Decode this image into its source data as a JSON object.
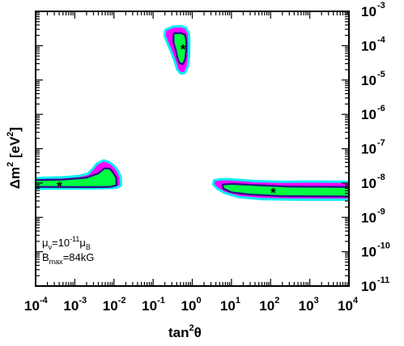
{
  "chart_data": {
    "type": "contour",
    "xlabel": {
      "base": "tan",
      "sup": "2",
      "tail": "θ"
    },
    "ylabel": {
      "base": "Δm",
      "sup": "2",
      "tail": " [eV",
      "sup2": "2",
      "end": "]"
    },
    "x_scale": "log",
    "y_scale": "log",
    "xlim": [
      0.0001,
      10000
    ],
    "ylim": [
      1e-11,
      0.001
    ],
    "x_ticks": [
      {
        "base": "10",
        "exp": "-4",
        "value": 0.0001
      },
      {
        "base": "10",
        "exp": "-3",
        "value": 0.001
      },
      {
        "base": "10",
        "exp": "-2",
        "value": 0.01
      },
      {
        "base": "10",
        "exp": "-1",
        "value": 0.1
      },
      {
        "base": "10",
        "exp": "0",
        "value": 1
      },
      {
        "base": "10",
        "exp": "1",
        "value": 10
      },
      {
        "base": "10",
        "exp": "2",
        "value": 100
      },
      {
        "base": "10",
        "exp": "3",
        "value": 1000
      },
      {
        "base": "10",
        "exp": "4",
        "value": 10000
      }
    ],
    "y_ticks": [
      {
        "base": "10",
        "exp": "-11",
        "value": 1e-11
      },
      {
        "base": "10",
        "exp": "-10",
        "value": 1e-10
      },
      {
        "base": "10",
        "exp": "-9",
        "value": 1e-09
      },
      {
        "base": "10",
        "exp": "-8",
        "value": 1e-08
      },
      {
        "base": "10",
        "exp": "-7",
        "value": 1e-07
      },
      {
        "base": "10",
        "exp": "-6",
        "value": 1e-06
      },
      {
        "base": "10",
        "exp": "-5",
        "value": 1e-05
      },
      {
        "base": "10",
        "exp": "-4",
        "value": 0.0001
      },
      {
        "base": "10",
        "exp": "-3",
        "value": 0.001
      }
    ],
    "levels_colors": [
      "#00f0f0",
      "#ff00ff",
      "#2a0a8a",
      "#00ff40"
    ],
    "regions": [
      {
        "id": "low-mixing",
        "outer": [
          [
            0.0001,
            1.26e-08
          ],
          [
            0.00016,
            1.3e-08
          ],
          [
            0.00045,
            1.35e-08
          ],
          [
            0.0012,
            1.45e-08
          ],
          [
            0.0022,
            1.7e-08
          ],
          [
            0.003,
            2.4e-08
          ],
          [
            0.0038,
            3.4e-08
          ],
          [
            0.0055,
            4.2e-08
          ],
          [
            0.0075,
            3.7e-08
          ],
          [
            0.0095,
            3e-08
          ],
          [
            0.0118,
            2.2e-08
          ],
          [
            0.0138,
            1.45e-08
          ],
          [
            0.014,
            8.8e-09
          ],
          [
            0.011,
            7.9e-09
          ],
          [
            0.004,
            7.6e-09
          ],
          [
            0.0001,
            7.5e-09
          ]
        ],
        "inner": [
          [
            0.0001,
            1.15e-08
          ],
          [
            0.0005,
            1.18e-08
          ],
          [
            0.002,
            1.35e-08
          ],
          [
            0.004,
            1.8e-08
          ],
          [
            0.0058,
            2.5e-08
          ],
          [
            0.0075,
            2.5e-08
          ],
          [
            0.009,
            2e-08
          ],
          [
            0.0108,
            1.4e-08
          ],
          [
            0.011,
            9e-09
          ],
          [
            0.008,
            8.2e-09
          ],
          [
            0.002,
            8.1e-09
          ],
          [
            0.0001,
            8.2e-09
          ]
        ],
        "best_fit": [
          0.0004,
          8.6e-09
        ]
      },
      {
        "id": "near-maximal",
        "outer": [
          [
            0.22,
            0.000275
          ],
          [
            0.33,
            0.00033
          ],
          [
            0.5,
            0.00034
          ],
          [
            0.66,
            0.00031
          ],
          [
            0.76,
            0.00022
          ],
          [
            0.78,
            0.000115
          ],
          [
            0.77,
            5.2e-05
          ],
          [
            0.72,
            2.6e-05
          ],
          [
            0.62,
            1.75e-05
          ],
          [
            0.52,
            1.68e-05
          ],
          [
            0.44,
            2.1e-05
          ],
          [
            0.39,
            3.4e-05
          ],
          [
            0.32,
            6.2e-05
          ],
          [
            0.25,
            0.00012
          ],
          [
            0.21,
            0.0002
          ]
        ],
        "inner": [
          [
            0.35,
            0.000215
          ],
          [
            0.5,
            0.00022
          ],
          [
            0.62,
            0.0002
          ],
          [
            0.66,
            0.000145
          ],
          [
            0.66,
            7.2e-05
          ],
          [
            0.63,
            4.2e-05
          ],
          [
            0.56,
            3.1e-05
          ],
          [
            0.49,
            3.3e-05
          ],
          [
            0.44,
            4.5e-05
          ],
          [
            0.4,
            7.5e-05
          ],
          [
            0.35,
            0.000125
          ]
        ],
        "best_fit": [
          0.57,
          8.5e-05
        ]
      },
      {
        "id": "dark-side",
        "outer": [
          [
            3.8,
            1.12e-08
          ],
          [
            5,
            1.18e-08
          ],
          [
            9,
            1.18e-08
          ],
          [
            40,
            1.05e-08
          ],
          [
            200,
            1e-08
          ],
          [
            1000,
            1.02e-08
          ],
          [
            10000,
            1e-08
          ],
          [
            10000,
            3.55e-09
          ],
          [
            500,
            3.55e-09
          ],
          [
            60,
            3.7e-09
          ],
          [
            16,
            4.2e-09
          ],
          [
            7,
            5.5e-09
          ],
          [
            4.5,
            7.4e-09
          ],
          [
            3.7,
            9.3e-09
          ]
        ],
        "inner": [
          [
            6.3,
            8.6e-09
          ],
          [
            10,
            8.9e-09
          ],
          [
            40,
            8.2e-09
          ],
          [
            300,
            7.4e-09
          ],
          [
            10000,
            7.2e-09
          ],
          [
            10000,
            4.3e-09
          ],
          [
            200,
            4.4e-09
          ],
          [
            30,
            4.9e-09
          ],
          [
            10,
            5.7e-09
          ],
          [
            6.5,
            7.2e-09
          ]
        ],
        "best_fit": [
          115,
          5.6e-09
        ]
      }
    ],
    "annotation": {
      "line1": {
        "a": "μ",
        "a_sub": "ν",
        "b": "=10",
        "b_sup": "-11",
        "c": "μ",
        "c_sub": "B"
      },
      "line2": {
        "a": "B",
        "a_sub": "max",
        "b": "=84kG"
      }
    }
  }
}
